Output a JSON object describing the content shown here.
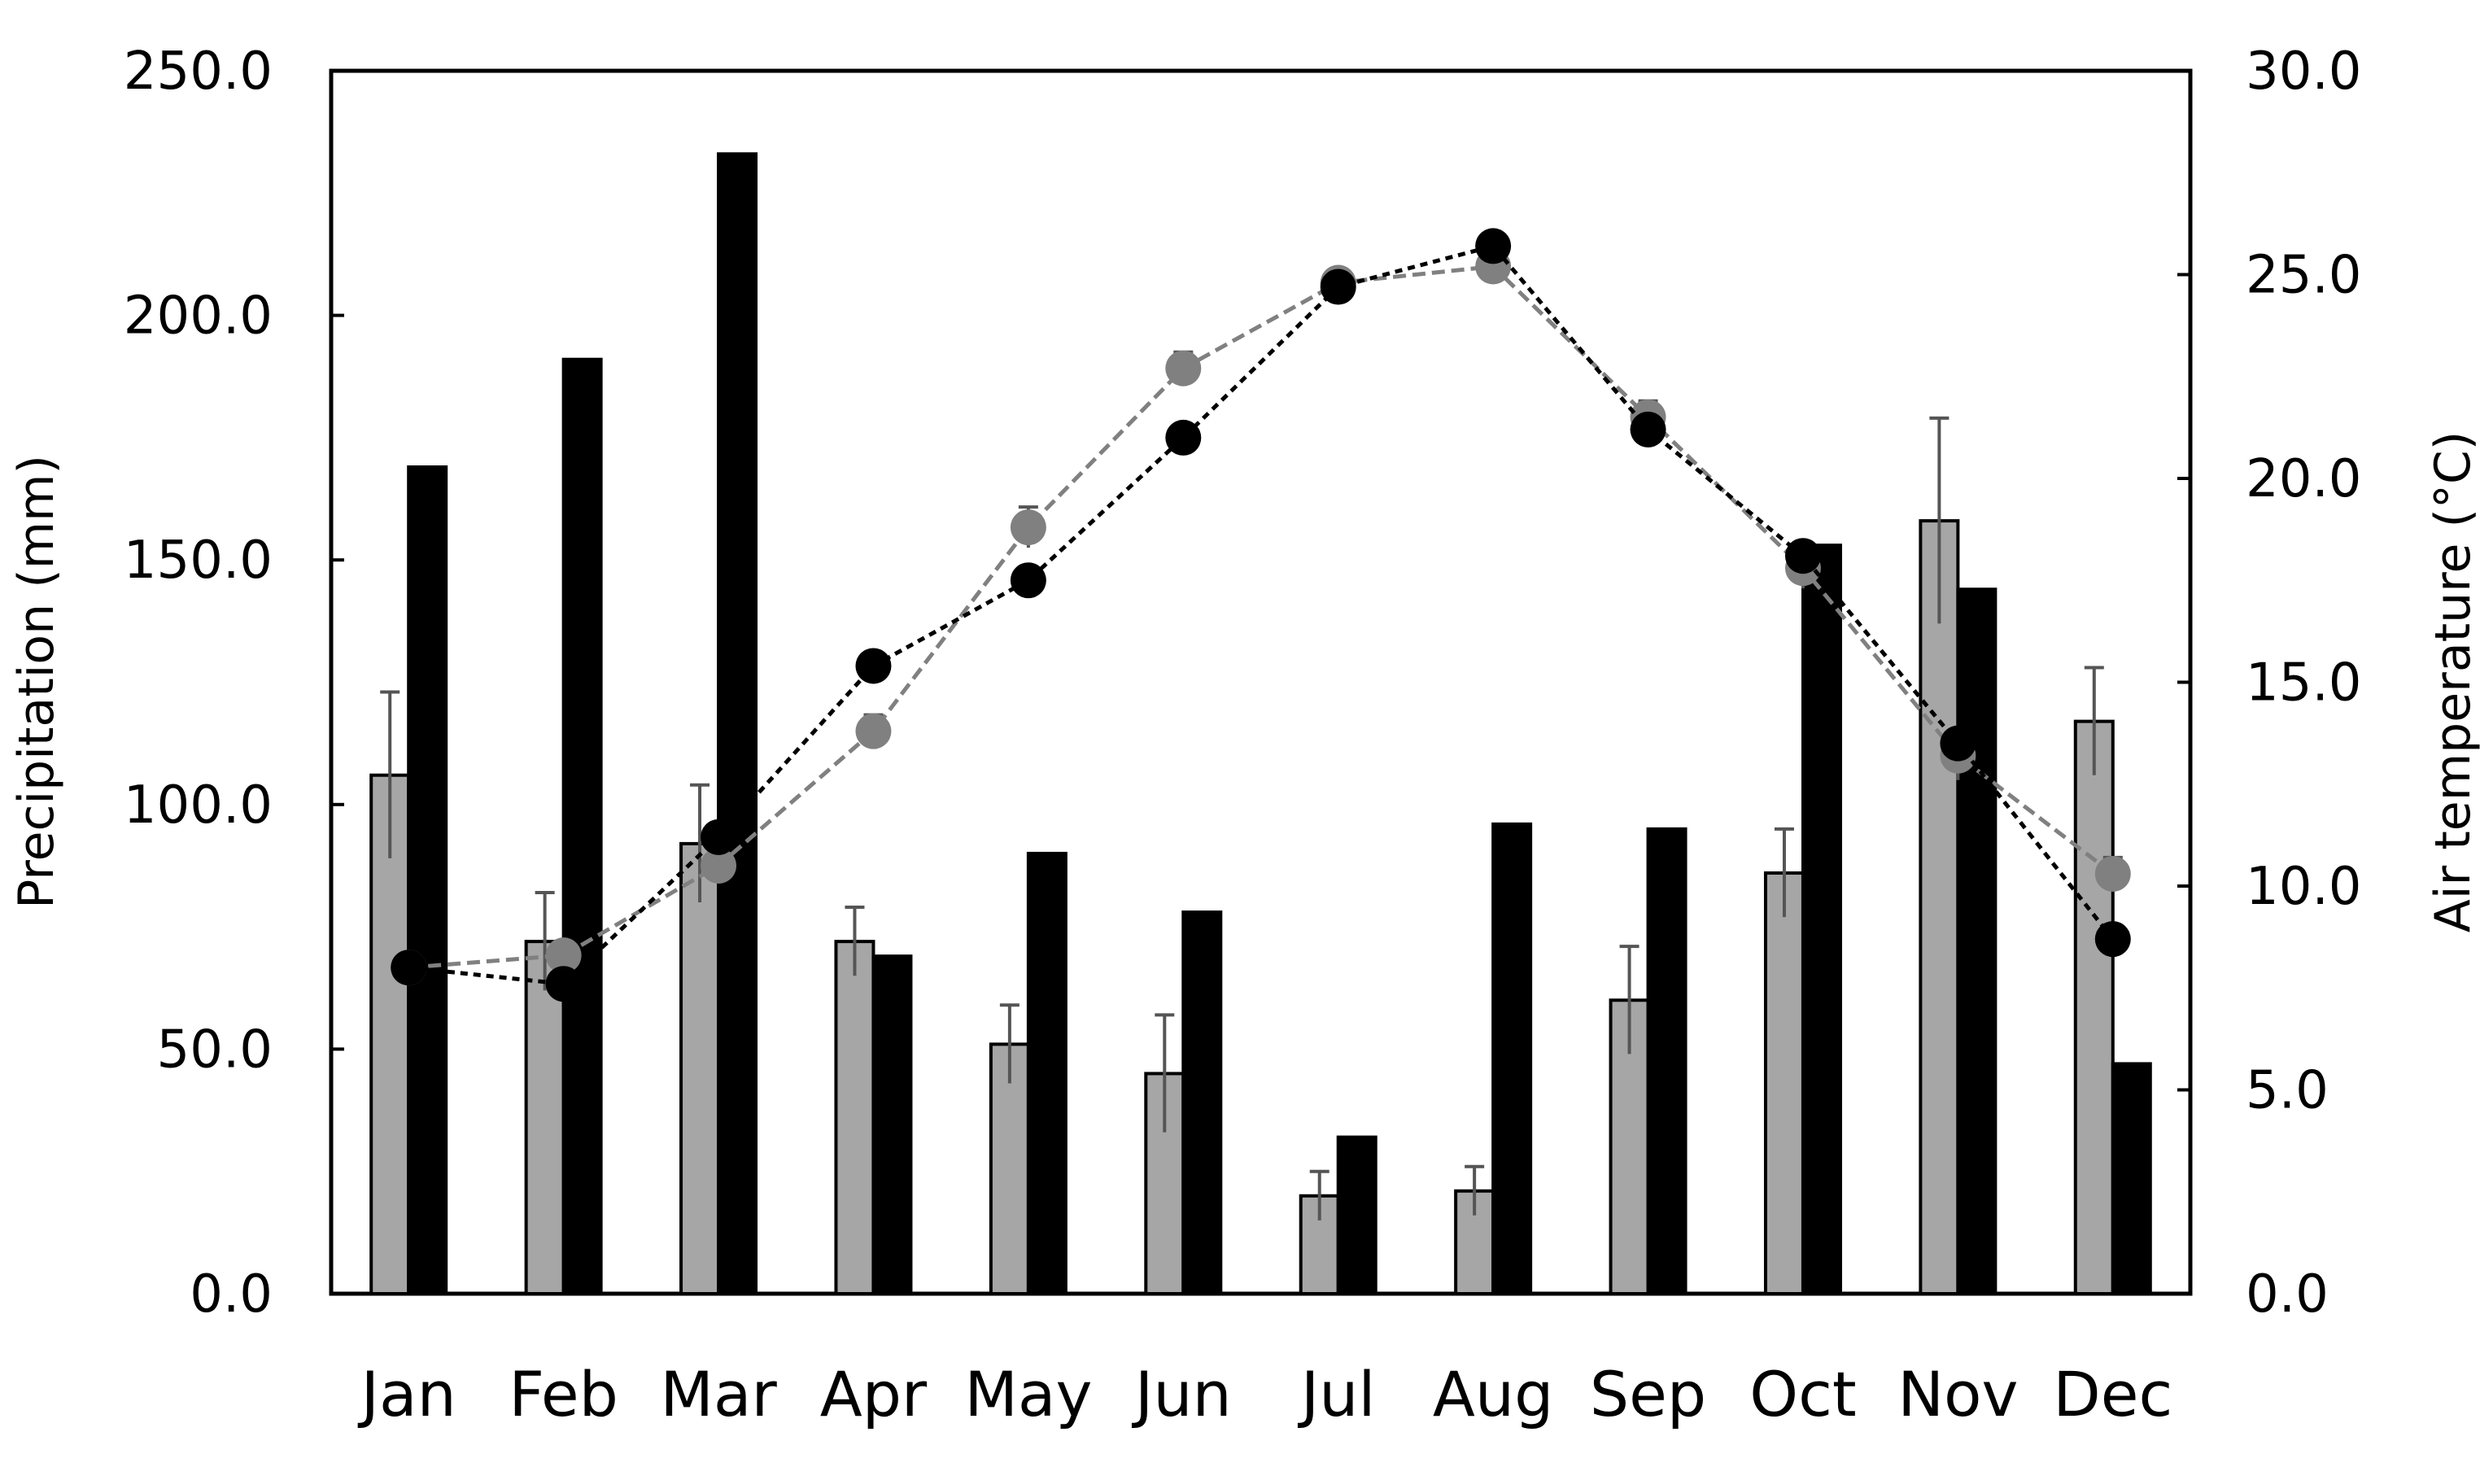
{
  "chart_data": {
    "type": "bar",
    "categories": [
      "Jan",
      "Feb",
      "Mar",
      "Apr",
      "May",
      "Jun",
      "Jul",
      "Aug",
      "Sep",
      "Oct",
      "Nov",
      "Dec"
    ],
    "ylabel_left": "Precipitation (mm)",
    "ylabel_right": "Air temperature (°C)",
    "ylim_left": [
      0,
      250
    ],
    "ylim_right": [
      0,
      30
    ],
    "yticks_left": [
      "0.0",
      "50.0",
      "100.0",
      "150.0",
      "200.0",
      "250.0"
    ],
    "yticks_right": [
      "0.0",
      "5.0",
      "10.0",
      "15.0",
      "20.0",
      "25.0",
      "30.0"
    ],
    "grid": false,
    "bar_series": [
      {
        "color": "#a6a6a6",
        "values": [
          106,
          72,
          92,
          72,
          51,
          45,
          20,
          21,
          60,
          86,
          158,
          117
        ],
        "error": [
          17,
          10,
          12,
          7,
          8,
          12,
          5,
          5,
          11,
          9,
          21,
          11
        ]
      },
      {
        "color": "#000000",
        "values": [
          169,
          191,
          233,
          69,
          90,
          78,
          32,
          96,
          95,
          153,
          144,
          47
        ]
      }
    ],
    "line_series": [
      {
        "color": "#808080",
        "style": "dashed",
        "values": [
          8.0,
          8.3,
          10.5,
          13.8,
          18.8,
          22.7,
          24.8,
          25.2,
          21.5,
          17.8,
          13.2,
          10.3
        ],
        "error": [
          0.3,
          0.3,
          0.4,
          0.4,
          0.5,
          0.4,
          0.3,
          0.4,
          0.4,
          0.5,
          0.6,
          0.4
        ]
      },
      {
        "color": "#000000",
        "style": "dotted",
        "values": [
          8.0,
          7.6,
          11.2,
          15.4,
          17.5,
          21.0,
          24.7,
          25.7,
          21.2,
          18.1,
          13.5,
          8.7
        ]
      }
    ]
  }
}
